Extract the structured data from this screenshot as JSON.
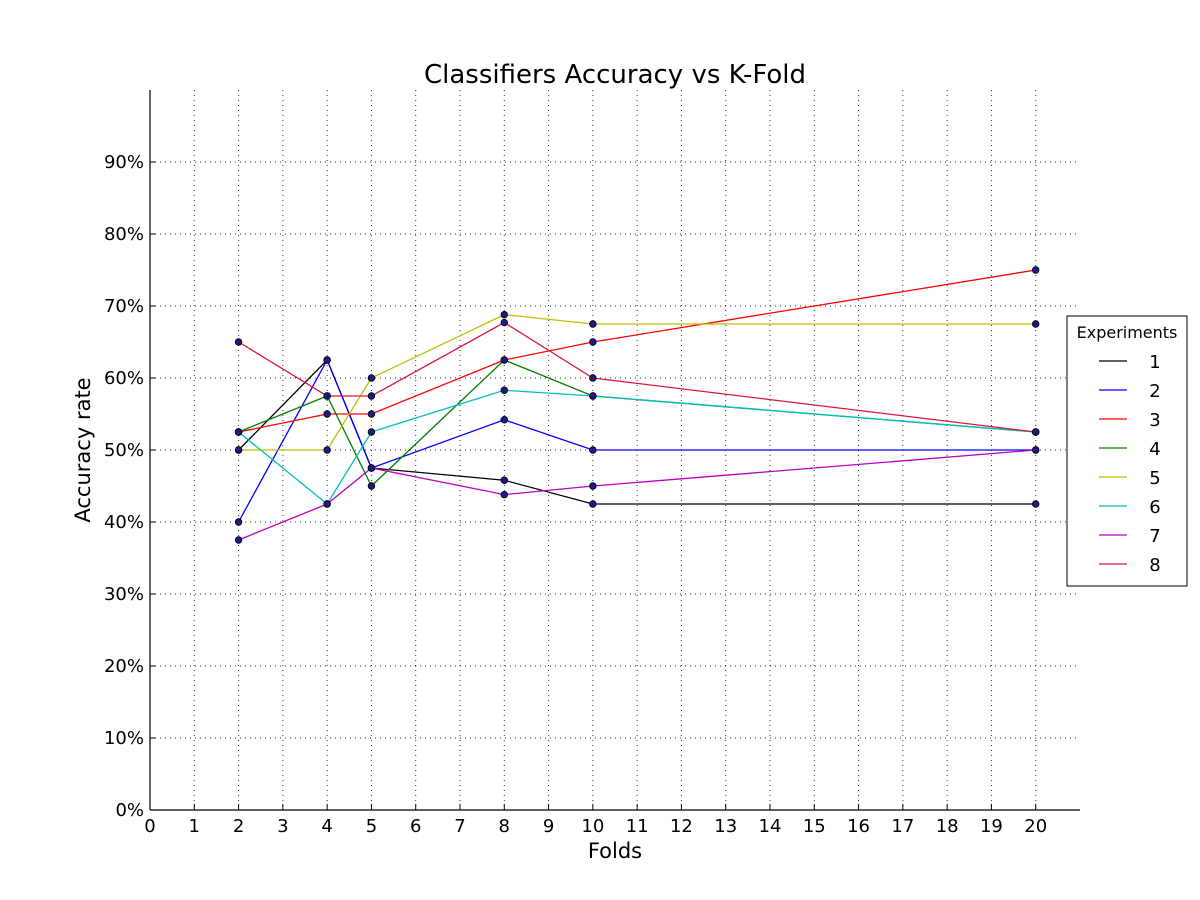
{
  "chart_data": {
    "type": "line",
    "title": "Classifiers Accuracy vs K-Fold",
    "xlabel": "Folds",
    "ylabel": "Accuracy rate",
    "x_ticks": [
      0,
      1,
      2,
      3,
      4,
      5,
      6,
      7,
      8,
      9,
      10,
      11,
      12,
      13,
      14,
      15,
      16,
      17,
      18,
      19,
      20
    ],
    "y_ticks": [
      0,
      10,
      20,
      30,
      40,
      50,
      60,
      70,
      80,
      90
    ],
    "y_tick_suffix": "%",
    "xlim": [
      0,
      21
    ],
    "ylim": [
      0,
      100
    ],
    "grid": true,
    "legend": {
      "title": "Experiments",
      "placement": "outside-right"
    },
    "x": [
      2,
      4,
      5,
      8,
      10,
      20
    ],
    "series": [
      {
        "name": "1",
        "color": "#000000",
        "values": [
          50.0,
          62.5,
          47.5,
          45.8,
          42.5,
          42.5
        ]
      },
      {
        "name": "2",
        "color": "#0000ff",
        "values": [
          40.0,
          62.5,
          47.5,
          54.2,
          50.0,
          50.0
        ]
      },
      {
        "name": "3",
        "color": "#ff0000",
        "values": [
          52.5,
          55.0,
          55.0,
          62.5,
          65.0,
          75.0
        ]
      },
      {
        "name": "4",
        "color": "#008000",
        "values": [
          52.5,
          57.5,
          45.0,
          62.5,
          57.5,
          52.5
        ]
      },
      {
        "name": "5",
        "color": "#bfbf00",
        "values": [
          50.0,
          50.0,
          60.0,
          68.8,
          67.5,
          67.5
        ]
      },
      {
        "name": "6",
        "color": "#00bfbf",
        "values": [
          52.5,
          42.5,
          52.5,
          58.3,
          57.5,
          52.5
        ]
      },
      {
        "name": "7",
        "color": "#bf00bf",
        "values": [
          37.5,
          42.5,
          47.5,
          43.8,
          45.0,
          50.0
        ]
      },
      {
        "name": "8",
        "color": "#dc143c",
        "values": [
          65.0,
          57.5,
          57.5,
          67.7,
          60.0,
          52.5
        ]
      }
    ],
    "marker_color": "#1a1a8c"
  }
}
